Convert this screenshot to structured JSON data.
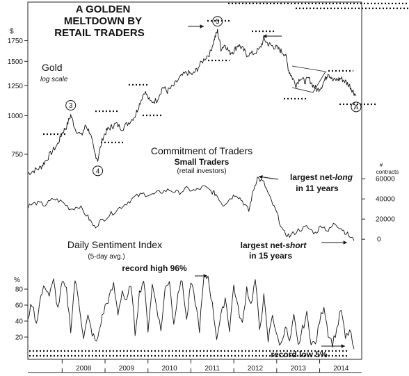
{
  "chart_data": [
    {
      "type": "line",
      "panel": "gold",
      "title": "A GOLDEN MELTDOWN BY RETAIL TRADERS",
      "title_lines": [
        "A GOLDEN",
        "MELTDOWN BY",
        "RETAIL TRADERS"
      ],
      "series_label": "Gold",
      "scale_note": "log scale",
      "y_unit": "$",
      "yscale": "log",
      "ylim": [
        600,
        2050
      ],
      "y_ticks": [
        {
          "value": 1750,
          "label": "1750"
        },
        {
          "value": 1500,
          "label": "1500"
        },
        {
          "value": 1250,
          "label": "1250"
        },
        {
          "value": 1000,
          "label": "1000"
        },
        {
          "value": 750,
          "label": "750"
        }
      ],
      "x": [
        2007.2,
        2007.35,
        2007.5,
        2007.6,
        2007.75,
        2007.9,
        2008.0,
        2008.1,
        2008.2,
        2008.3,
        2008.45,
        2008.55,
        2008.65,
        2008.75,
        2008.83,
        2008.95,
        2009.05,
        2009.15,
        2009.25,
        2009.4,
        2009.55,
        2009.7,
        2009.8,
        2009.92,
        2010.05,
        2010.2,
        2010.35,
        2010.45,
        2010.6,
        2010.75,
        2010.9,
        2011.05,
        2011.15,
        2011.3,
        2011.45,
        2011.55,
        2011.62,
        2011.7,
        2011.8,
        2011.9,
        2012.0,
        2012.1,
        2012.2,
        2012.3,
        2012.45,
        2012.6,
        2012.7,
        2012.8,
        2012.9,
        2013.0,
        2013.1,
        2013.2,
        2013.28,
        2013.35,
        2013.45,
        2013.55,
        2013.65,
        2013.75,
        2013.85,
        2013.95,
        2014.05,
        2014.15,
        2014.2,
        2014.3,
        2014.42,
        2014.5,
        2014.6,
        2014.7,
        2014.78,
        2014.85
      ],
      "y": [
        650,
        665,
        680,
        710,
        760,
        810,
        880,
        920,
        1005,
        910,
        860,
        930,
        880,
        760,
        720,
        850,
        900,
        920,
        940,
        910,
        950,
        1000,
        1090,
        1200,
        1110,
        1120,
        1240,
        1200,
        1250,
        1330,
        1380,
        1360,
        1420,
        1520,
        1600,
        1780,
        1880,
        1650,
        1700,
        1600,
        1620,
        1700,
        1650,
        1580,
        1590,
        1640,
        1770,
        1710,
        1680,
        1660,
        1620,
        1580,
        1400,
        1340,
        1260,
        1330,
        1290,
        1320,
        1250,
        1210,
        1250,
        1330,
        1380,
        1300,
        1310,
        1320,
        1290,
        1250,
        1200,
        1160
      ],
      "wave_labels": [
        {
          "label": "3",
          "x": 2008.2,
          "y": 1005,
          "pos": "above"
        },
        {
          "label": "4",
          "x": 2008.83,
          "y": 720,
          "pos": "below"
        },
        {
          "label": "5",
          "x": 2011.62,
          "y": 1880,
          "pos": "above"
        },
        {
          "label": "A",
          "x": 2014.85,
          "y": 1160,
          "pos": "below"
        }
      ]
    },
    {
      "type": "line",
      "panel": "cot",
      "title": "Commitment of Traders",
      "subtitle": "Small Traders",
      "note": "(retail investors)",
      "y_unit": "# contracts",
      "ylim": [
        -4000,
        65000
      ],
      "y_ticks": [
        {
          "value": 60000,
          "label": "60000"
        },
        {
          "value": 40000,
          "label": "40000"
        },
        {
          "value": 20000,
          "label": "20000"
        },
        {
          "value": 0,
          "label": "0"
        }
      ],
      "x": [
        2007.2,
        2007.4,
        2007.6,
        2007.8,
        2008.0,
        2008.2,
        2008.4,
        2008.6,
        2008.75,
        2008.9,
        2009.1,
        2009.3,
        2009.5,
        2009.7,
        2009.9,
        2010.1,
        2010.3,
        2010.5,
        2010.7,
        2010.9,
        2011.1,
        2011.3,
        2011.5,
        2011.6,
        2011.75,
        2011.9,
        2012.05,
        2012.2,
        2012.35,
        2012.45,
        2012.55,
        2012.7,
        2012.85,
        2013.0,
        2013.15,
        2013.3,
        2013.5,
        2013.7,
        2013.9,
        2014.05,
        2014.2,
        2014.35,
        2014.5,
        2014.65,
        2014.8
      ],
      "y": [
        33000,
        36000,
        34000,
        40000,
        37000,
        30000,
        33000,
        22000,
        12000,
        18000,
        24000,
        30000,
        36000,
        42000,
        45000,
        44000,
        47000,
        49000,
        46000,
        50000,
        48000,
        52000,
        47000,
        44000,
        34000,
        40000,
        45000,
        38000,
        28000,
        48000,
        61000,
        56000,
        40000,
        26000,
        7000,
        3000,
        9000,
        12000,
        6000,
        14000,
        8000,
        16000,
        11000,
        5000,
        -1500
      ],
      "annotations": [
        {
          "lines": [
            "largest net-long",
            "in 11 years"
          ],
          "emph": "long"
        },
        {
          "lines": [
            "largest net-short",
            "in 15 years"
          ],
          "emph": "short"
        }
      ]
    },
    {
      "type": "line",
      "panel": "dsi",
      "title": "Daily Sentiment Index",
      "subtitle": "(5-day avg.)",
      "y_unit": "%",
      "ylim": [
        0,
        100
      ],
      "y_ticks": [
        {
          "value": 80,
          "label": "80"
        },
        {
          "value": 60,
          "label": "60"
        },
        {
          "value": 40,
          "label": "40"
        },
        {
          "value": 20,
          "label": "20"
        }
      ],
      "x": [
        2007.2,
        2007.3,
        2007.4,
        2007.5,
        2007.6,
        2007.7,
        2007.8,
        2007.9,
        2008.0,
        2008.1,
        2008.2,
        2008.3,
        2008.4,
        2008.5,
        2008.6,
        2008.7,
        2008.8,
        2008.9,
        2009.0,
        2009.1,
        2009.2,
        2009.3,
        2009.4,
        2009.5,
        2009.6,
        2009.7,
        2009.8,
        2009.9,
        2010.0,
        2010.1,
        2010.2,
        2010.3,
        2010.4,
        2010.5,
        2010.6,
        2010.7,
        2010.8,
        2010.9,
        2011.0,
        2011.1,
        2011.2,
        2011.3,
        2011.4,
        2011.5,
        2011.6,
        2011.7,
        2011.8,
        2011.9,
        2012.0,
        2012.1,
        2012.2,
        2012.3,
        2012.4,
        2012.5,
        2012.6,
        2012.7,
        2012.8,
        2012.9,
        2013.0,
        2013.1,
        2013.2,
        2013.3,
        2013.4,
        2013.5,
        2013.6,
        2013.7,
        2013.8,
        2013.9,
        2014.0,
        2014.1,
        2014.2,
        2014.3,
        2014.4,
        2014.5,
        2014.6,
        2014.7,
        2014.8
      ],
      "y": [
        45,
        62,
        38,
        70,
        85,
        72,
        90,
        55,
        88,
        78,
        30,
        92,
        60,
        20,
        45,
        25,
        12,
        38,
        58,
        70,
        85,
        50,
        78,
        62,
        88,
        25,
        75,
        92,
        30,
        85,
        60,
        28,
        80,
        92,
        35,
        78,
        90,
        40,
        88,
        65,
        30,
        92,
        96,
        60,
        20,
        45,
        70,
        30,
        85,
        55,
        35,
        82,
        60,
        92,
        30,
        70,
        15,
        50,
        20,
        10,
        35,
        12,
        45,
        8,
        30,
        48,
        15,
        10,
        40,
        60,
        25,
        12,
        30,
        55,
        18,
        28,
        5
      ],
      "annotations": [
        {
          "text": "record high 96%"
        },
        {
          "text": "record low 5%"
        }
      ]
    }
  ],
  "x_axis": {
    "labels": [
      "2008",
      "2009",
      "2010",
      "2011",
      "2012",
      "2013",
      "2014"
    ],
    "xlim": [
      2007.2,
      2014.98
    ]
  }
}
